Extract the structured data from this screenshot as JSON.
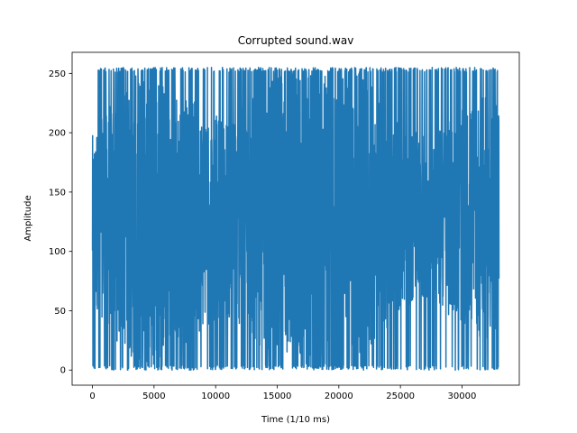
{
  "chart_data": {
    "type": "line",
    "title": "Corrupted sound.wav",
    "xlabel": "Time (1/10 ms)",
    "ylabel": "Amplitude",
    "xlim": [
      -1650,
      34650
    ],
    "ylim": [
      -12.75,
      267.75
    ],
    "x_ticks": [
      0,
      5000,
      10000,
      15000,
      20000,
      25000,
      30000
    ],
    "x_tick_labels": [
      "0",
      "5000",
      "10000",
      "15000",
      "20000",
      "25000",
      "30000"
    ],
    "y_ticks": [
      0,
      50,
      100,
      150,
      200,
      250
    ],
    "y_tick_labels": [
      "0",
      "50",
      "100",
      "150",
      "200",
      "250"
    ],
    "grid": false,
    "series": [
      {
        "name": "",
        "color": "#1f77b4",
        "x_start": 0,
        "x_end": 33000,
        "y_min": 0,
        "y_max": 255,
        "center": 128
      }
    ]
  }
}
